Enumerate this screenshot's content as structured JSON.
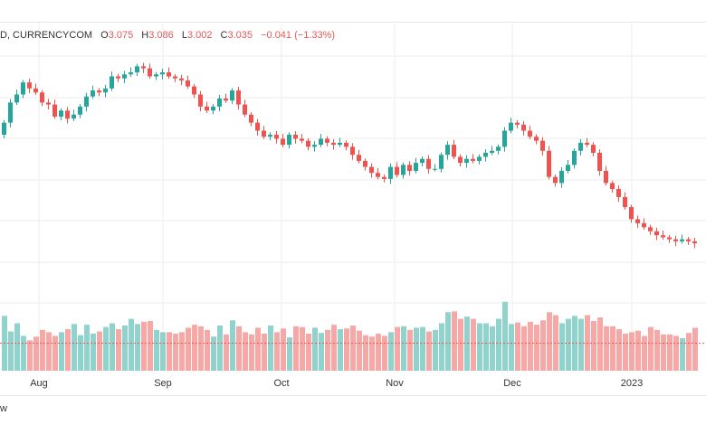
{
  "legend": {
    "symbol": "D, CURRENCYCOM",
    "open_label": "O",
    "open": "3.075",
    "high_label": "H",
    "high": "3.086",
    "low_label": "L",
    "low": "3.002",
    "close_label": "C",
    "close": "3.035",
    "change": "−0.041 (−1.33%)"
  },
  "footer": {
    "text": "w"
  },
  "colors": {
    "up": "#26a69a",
    "down": "#ef5350",
    "up_vol": "#8fd3cc",
    "down_vol": "#f5a8a6",
    "grid": "#eeeeee"
  },
  "chart_data": {
    "type": "candlestick",
    "x_ticks": [
      "Aug",
      "Sep",
      "Oct",
      "Nov",
      "Dec",
      "2023"
    ],
    "x_tick_positions_days": [
      16,
      47,
      77,
      108,
      138,
      169
    ],
    "current_volume_level": 0.37,
    "closes": [
      3.52,
      3.62,
      3.66,
      3.72,
      3.69,
      3.67,
      3.62,
      3.61,
      3.55,
      3.58,
      3.54,
      3.56,
      3.6,
      3.65,
      3.68,
      3.67,
      3.69,
      3.75,
      3.74,
      3.76,
      3.77,
      3.8,
      3.79,
      3.75,
      3.76,
      3.77,
      3.75,
      3.74,
      3.73,
      3.7,
      3.66,
      3.6,
      3.58,
      3.6,
      3.64,
      3.63,
      3.68,
      3.61,
      3.56,
      3.52,
      3.48,
      3.45,
      3.46,
      3.44,
      3.41,
      3.46,
      3.44,
      3.43,
      3.4,
      3.41,
      3.44,
      3.42,
      3.41,
      3.42,
      3.4,
      3.36,
      3.33,
      3.3,
      3.27,
      3.25,
      3.24,
      3.3,
      3.26,
      3.31,
      3.28,
      3.32,
      3.34,
      3.29,
      3.29,
      3.36,
      3.41,
      3.35,
      3.32,
      3.34,
      3.33,
      3.35,
      3.37,
      3.38,
      3.4,
      3.48,
      3.52,
      3.51,
      3.48,
      3.45,
      3.43,
      3.38,
      3.25,
      3.22,
      3.28,
      3.31,
      3.38,
      3.42,
      3.41,
      3.37,
      3.28,
      3.22,
      3.19,
      3.15,
      3.1,
      3.04,
      3.02,
      3.0,
      2.98,
      2.96,
      2.95,
      2.94,
      2.93,
      2.94,
      2.93,
      2.92
    ],
    "volumes": [
      0.74,
      0.53,
      0.64,
      0.47,
      0.41,
      0.46,
      0.55,
      0.52,
      0.47,
      0.52,
      0.56,
      0.63,
      0.48,
      0.62,
      0.5,
      0.53,
      0.59,
      0.64,
      0.56,
      0.61,
      0.7,
      0.63,
      0.66,
      0.67,
      0.55,
      0.52,
      0.52,
      0.5,
      0.52,
      0.58,
      0.62,
      0.6,
      0.55,
      0.46,
      0.61,
      0.49,
      0.68,
      0.6,
      0.52,
      0.49,
      0.58,
      0.5,
      0.61,
      0.52,
      0.57,
      0.45,
      0.6,
      0.59,
      0.5,
      0.58,
      0.51,
      0.55,
      0.62,
      0.56,
      0.57,
      0.61,
      0.54,
      0.48,
      0.46,
      0.5,
      0.47,
      0.52,
      0.59,
      0.6,
      0.55,
      0.58,
      0.59,
      0.53,
      0.55,
      0.64,
      0.79,
      0.8,
      0.7,
      0.73,
      0.7,
      0.64,
      0.64,
      0.6,
      0.7,
      0.93,
      0.63,
      0.65,
      0.6,
      0.66,
      0.62,
      0.68,
      0.79,
      0.75,
      0.64,
      0.7,
      0.74,
      0.7,
      0.75,
      0.67,
      0.72,
      0.6,
      0.6,
      0.56,
      0.5,
      0.52,
      0.54,
      0.47,
      0.59,
      0.55,
      0.49,
      0.49,
      0.47,
      0.44,
      0.51,
      0.58
    ]
  }
}
